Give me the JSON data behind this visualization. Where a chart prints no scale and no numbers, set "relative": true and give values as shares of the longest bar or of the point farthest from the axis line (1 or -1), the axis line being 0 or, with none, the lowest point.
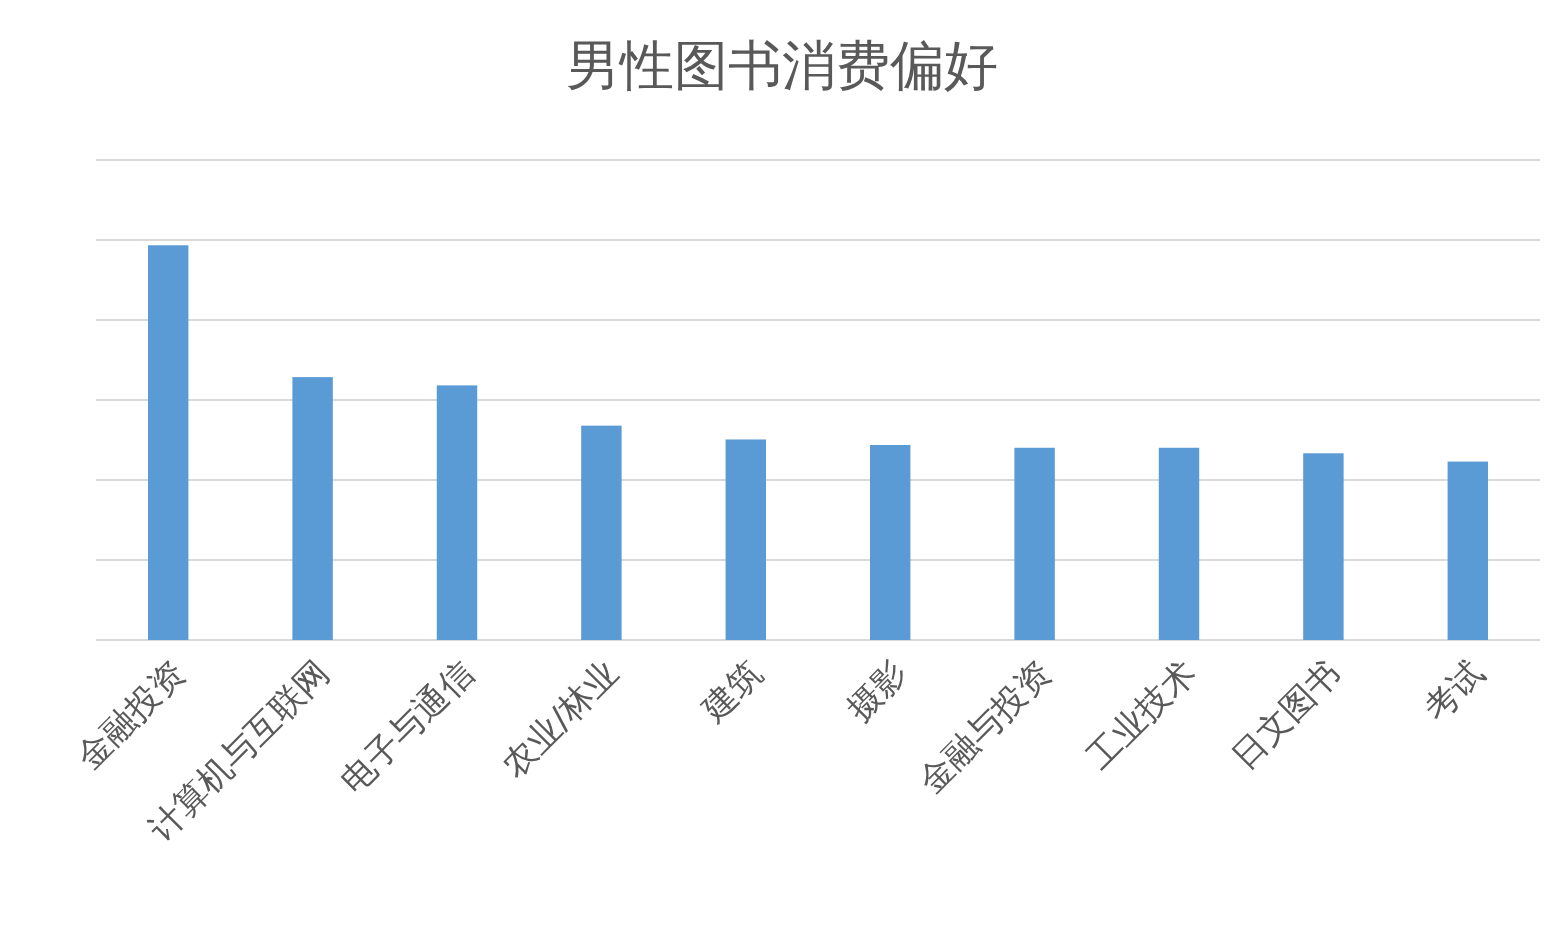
{
  "chart_data": {
    "type": "bar",
    "title": "男性图书消费偏好",
    "relative": true,
    "grid": true,
    "color": "#5b9bd5",
    "categories": [
      "金融投资",
      "计算机与互联网",
      "电子与通信",
      "农业/林业",
      "建筑",
      "摄影",
      "金融与投资",
      "工业技术",
      "日文图书",
      "考试"
    ],
    "values": [
      1,
      0.666,
      0.645,
      0.543,
      0.508,
      0.494,
      0.487,
      0.487,
      0.473,
      0.452
    ]
  }
}
